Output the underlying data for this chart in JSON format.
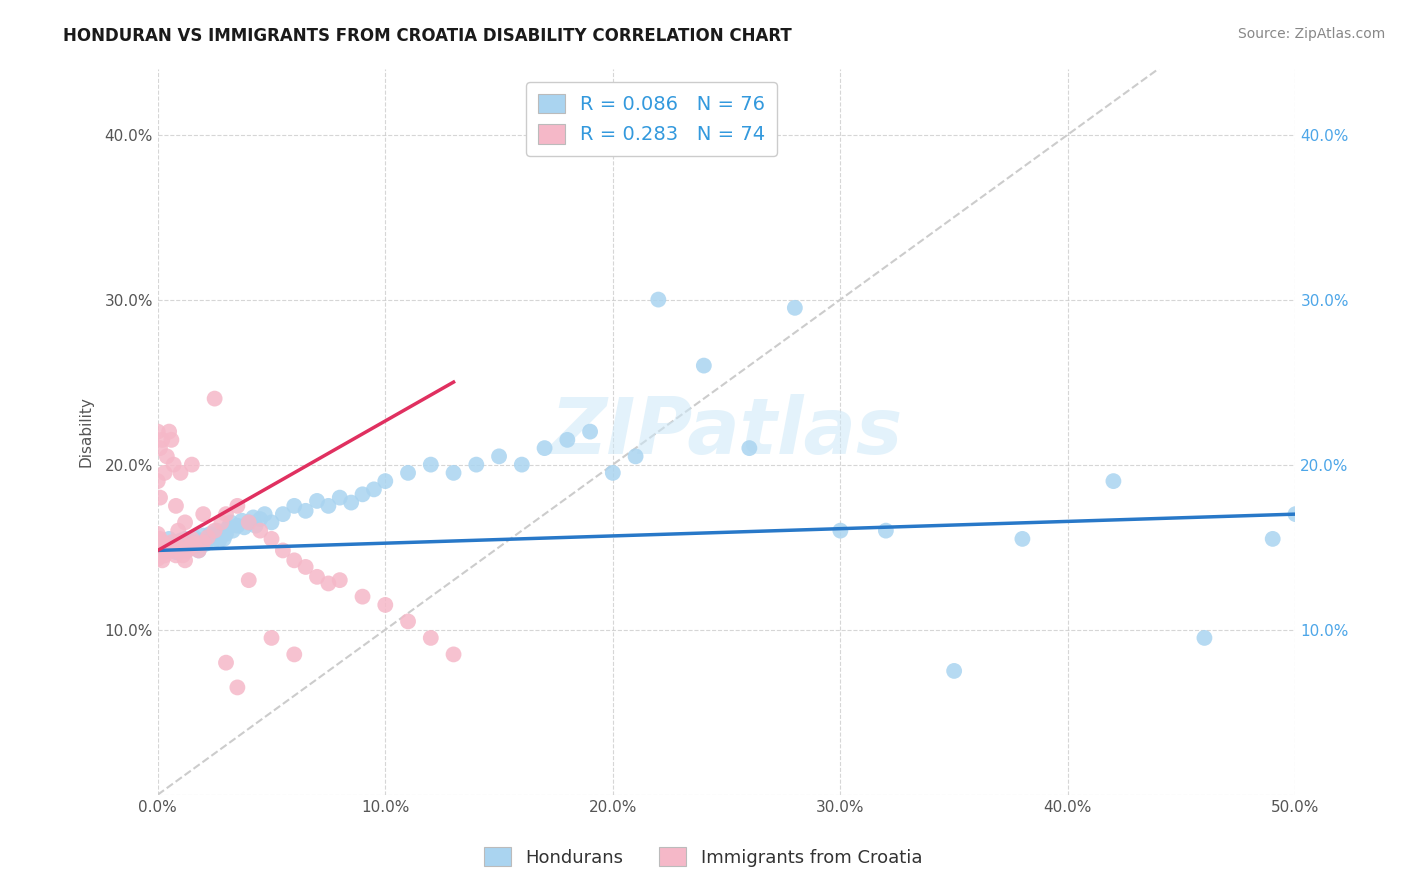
{
  "title": "HONDURAN VS IMMIGRANTS FROM CROATIA DISABILITY CORRELATION CHART",
  "source": "Source: ZipAtlas.com",
  "ylabel": "Disability",
  "xlim": [
    0.0,
    0.5
  ],
  "ylim": [
    0.0,
    0.44
  ],
  "xticks": [
    0.0,
    0.1,
    0.2,
    0.3,
    0.4,
    0.5
  ],
  "yticks": [
    0.0,
    0.1,
    0.2,
    0.3,
    0.4
  ],
  "xticklabels": [
    "0.0%",
    "10.0%",
    "20.0%",
    "30.0%",
    "40.0%",
    "50.0%"
  ],
  "yticklabels_left": [
    "",
    "10.0%",
    "20.0%",
    "30.0%",
    "40.0%"
  ],
  "yticklabels_right": [
    "",
    "10.0%",
    "20.0%",
    "30.0%",
    "40.0%"
  ],
  "blue_R": 0.086,
  "blue_N": 76,
  "pink_R": 0.283,
  "pink_N": 74,
  "blue_color": "#aad4f0",
  "pink_color": "#f5b8c8",
  "blue_line_color": "#2878c8",
  "pink_line_color": "#e03060",
  "diagonal_color": "#cccccc",
  "watermark": "ZIPatlas",
  "blue_scatter_x": [
    0.002,
    0.003,
    0.004,
    0.004,
    0.005,
    0.005,
    0.006,
    0.007,
    0.008,
    0.01,
    0.01,
    0.011,
    0.012,
    0.013,
    0.014,
    0.015,
    0.016,
    0.017,
    0.018,
    0.019,
    0.02,
    0.021,
    0.022,
    0.023,
    0.024,
    0.025,
    0.026,
    0.027,
    0.028,
    0.029,
    0.03,
    0.031,
    0.032,
    0.033,
    0.035,
    0.037,
    0.038,
    0.04,
    0.042,
    0.043,
    0.045,
    0.047,
    0.05,
    0.055,
    0.06,
    0.065,
    0.07,
    0.075,
    0.08,
    0.085,
    0.09,
    0.095,
    0.1,
    0.11,
    0.12,
    0.13,
    0.14,
    0.15,
    0.16,
    0.17,
    0.18,
    0.19,
    0.2,
    0.21,
    0.22,
    0.24,
    0.26,
    0.28,
    0.3,
    0.32,
    0.35,
    0.38,
    0.42,
    0.46,
    0.49,
    0.5
  ],
  "blue_scatter_y": [
    0.148,
    0.15,
    0.152,
    0.148,
    0.155,
    0.149,
    0.151,
    0.153,
    0.147,
    0.15,
    0.154,
    0.148,
    0.155,
    0.152,
    0.149,
    0.153,
    0.156,
    0.151,
    0.148,
    0.154,
    0.157,
    0.152,
    0.155,
    0.158,
    0.153,
    0.156,
    0.16,
    0.154,
    0.157,
    0.155,
    0.158,
    0.162,
    0.165,
    0.16,
    0.163,
    0.166,
    0.162,
    0.165,
    0.168,
    0.163,
    0.167,
    0.17,
    0.165,
    0.17,
    0.175,
    0.172,
    0.178,
    0.175,
    0.18,
    0.177,
    0.182,
    0.185,
    0.19,
    0.195,
    0.2,
    0.195,
    0.2,
    0.205,
    0.2,
    0.21,
    0.215,
    0.22,
    0.195,
    0.205,
    0.3,
    0.26,
    0.21,
    0.295,
    0.16,
    0.16,
    0.075,
    0.155,
    0.19,
    0.095,
    0.155,
    0.17
  ],
  "pink_scatter_x": [
    0.0,
    0.0,
    0.0,
    0.0,
    0.0,
    0.0,
    0.0,
    0.0,
    0.0,
    0.0,
    0.001,
    0.001,
    0.001,
    0.002,
    0.002,
    0.003,
    0.003,
    0.004,
    0.005,
    0.006,
    0.007,
    0.008,
    0.009,
    0.01,
    0.01,
    0.011,
    0.012,
    0.013,
    0.014,
    0.015,
    0.016,
    0.018,
    0.02,
    0.022,
    0.025,
    0.028,
    0.03,
    0.035,
    0.04,
    0.045,
    0.05,
    0.055,
    0.06,
    0.065,
    0.07,
    0.075,
    0.08,
    0.09,
    0.1,
    0.11,
    0.12,
    0.13,
    0.0,
    0.0,
    0.001,
    0.001,
    0.002,
    0.003,
    0.004,
    0.005,
    0.006,
    0.007,
    0.008,
    0.009,
    0.01,
    0.012,
    0.015,
    0.02,
    0.025,
    0.03,
    0.035,
    0.04,
    0.05,
    0.06
  ],
  "pink_scatter_y": [
    0.148,
    0.152,
    0.155,
    0.15,
    0.145,
    0.148,
    0.153,
    0.158,
    0.143,
    0.147,
    0.145,
    0.15,
    0.155,
    0.148,
    0.142,
    0.152,
    0.145,
    0.148,
    0.15,
    0.153,
    0.148,
    0.145,
    0.15,
    0.148,
    0.153,
    0.145,
    0.142,
    0.148,
    0.15,
    0.155,
    0.152,
    0.148,
    0.153,
    0.156,
    0.16,
    0.165,
    0.17,
    0.175,
    0.165,
    0.16,
    0.155,
    0.148,
    0.142,
    0.138,
    0.132,
    0.128,
    0.13,
    0.12,
    0.115,
    0.105,
    0.095,
    0.085,
    0.22,
    0.19,
    0.21,
    0.18,
    0.215,
    0.195,
    0.205,
    0.22,
    0.215,
    0.2,
    0.175,
    0.16,
    0.195,
    0.165,
    0.2,
    0.17,
    0.24,
    0.08,
    0.065,
    0.13,
    0.095,
    0.085
  ],
  "blue_line_x": [
    0.0,
    0.5
  ],
  "blue_line_y": [
    0.148,
    0.17
  ],
  "pink_line_x": [
    0.0,
    0.13
  ],
  "pink_line_y": [
    0.148,
    0.25
  ]
}
